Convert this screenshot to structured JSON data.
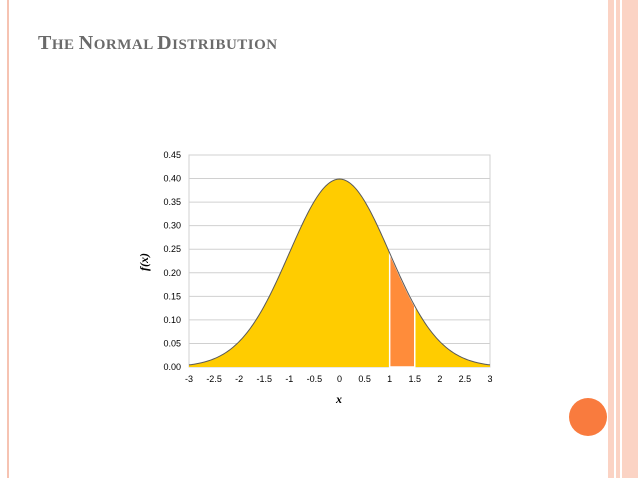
{
  "slide": {
    "title_cap1": "T",
    "title_rest1": "HE ",
    "title_cap2": "N",
    "title_rest2": "ORMAL ",
    "title_cap3": "D",
    "title_rest3": "ISTRIBUTION"
  },
  "colors": {
    "curve_fill": "#ffcc00",
    "highlight_fill": "#ff8c3a",
    "curve_stroke": "#5a5a5a",
    "grid": "#d0d0d0",
    "title": "#6a6a6a",
    "accent_circle": "#f97b3e",
    "stripe": "#fbd3c4"
  },
  "chart_data": {
    "type": "area",
    "function": "standard normal pdf",
    "xlabel": "x",
    "ylabel": "f(x)",
    "xlim": [
      -3,
      3
    ],
    "ylim": [
      0,
      0.45
    ],
    "x_ticks": [
      "-3",
      "-2.5",
      "-2",
      "-1.5",
      "-1",
      "-0.5",
      "0",
      "0.5",
      "1",
      "1.5",
      "2",
      "2.5",
      "3"
    ],
    "x_tick_values": [
      -3,
      -2.5,
      -2,
      -1.5,
      -1,
      -0.5,
      0,
      0.5,
      1,
      1.5,
      2,
      2.5,
      3
    ],
    "y_ticks": [
      "0.00",
      "0.05",
      "0.10",
      "0.15",
      "0.20",
      "0.25",
      "0.30",
      "0.35",
      "0.40",
      "0.45"
    ],
    "y_tick_values": [
      0,
      0.05,
      0.1,
      0.15,
      0.2,
      0.25,
      0.3,
      0.35,
      0.4,
      0.45
    ],
    "highlight_region": [
      1,
      1.5
    ],
    "grid": true,
    "points": [
      {
        "x": -3,
        "y": 0.0044
      },
      {
        "x": -2.5,
        "y": 0.0175
      },
      {
        "x": -2,
        "y": 0.054
      },
      {
        "x": -1.5,
        "y": 0.1295
      },
      {
        "x": -1,
        "y": 0.242
      },
      {
        "x": -0.5,
        "y": 0.3521
      },
      {
        "x": 0,
        "y": 0.3989
      },
      {
        "x": 0.5,
        "y": 0.3521
      },
      {
        "x": 1,
        "y": 0.242
      },
      {
        "x": 1.5,
        "y": 0.1295
      },
      {
        "x": 2,
        "y": 0.054
      },
      {
        "x": 2.5,
        "y": 0.0175
      },
      {
        "x": 3,
        "y": 0.0044
      }
    ]
  }
}
